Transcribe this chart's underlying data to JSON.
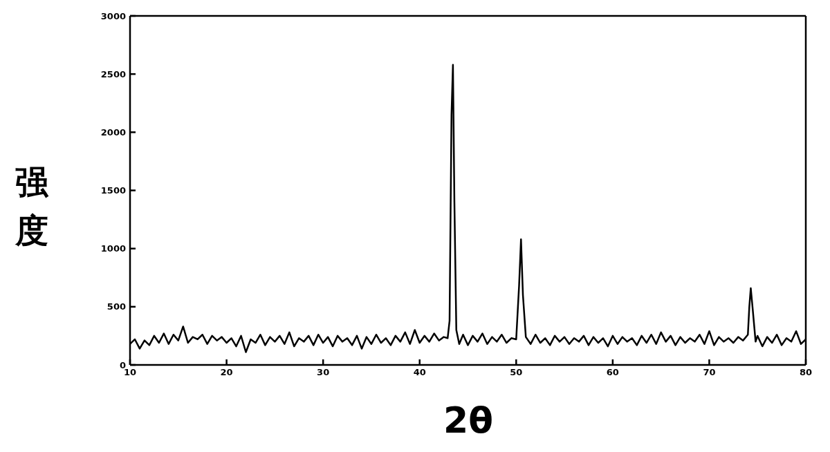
{
  "chart_data": {
    "type": "line",
    "xlabel": "2θ",
    "ylabel": "强度",
    "x": [
      10,
      10.5,
      11,
      11.5,
      12,
      12.5,
      13,
      13.5,
      14,
      14.5,
      15,
      15.5,
      16,
      16.5,
      17,
      17.5,
      18,
      18.5,
      19,
      19.5,
      20,
      20.5,
      21,
      21.5,
      22,
      22.5,
      23,
      23.5,
      24,
      24.5,
      25,
      25.5,
      26,
      26.5,
      27,
      27.5,
      28,
      28.5,
      29,
      29.5,
      30,
      30.5,
      31,
      31.5,
      32,
      32.5,
      33,
      33.5,
      34,
      34.5,
      35,
      35.5,
      36,
      36.5,
      37,
      37.5,
      38,
      38.5,
      39,
      39.5,
      40,
      40.5,
      41,
      41.5,
      42,
      42.5,
      42.9,
      43.1,
      43.3,
      43.45,
      43.6,
      43.8,
      44.1,
      44.5,
      45,
      45.5,
      46,
      46.5,
      47,
      47.5,
      48,
      48.5,
      49,
      49.5,
      50,
      50.3,
      50.5,
      50.7,
      51,
      51.5,
      52,
      52.5,
      53,
      53.5,
      54,
      54.5,
      55,
      55.5,
      56,
      56.5,
      57,
      57.5,
      58,
      58.5,
      59,
      59.5,
      60,
      60.5,
      61,
      61.5,
      62,
      62.5,
      63,
      63.5,
      64,
      64.5,
      65,
      65.5,
      66,
      66.5,
      67,
      67.5,
      68,
      68.5,
      69,
      69.5,
      70,
      70.5,
      71,
      71.5,
      72,
      72.5,
      73,
      73.5,
      74,
      74.15,
      74.3,
      74.5,
      74.8,
      75,
      75.5,
      76,
      76.5,
      77,
      77.5,
      78,
      78.5,
      79,
      79.5,
      80
    ],
    "series": [
      {
        "color": "#000000",
        "values": [
          180,
          220,
          140,
          210,
          170,
          250,
          190,
          270,
          180,
          260,
          210,
          330,
          190,
          240,
          220,
          260,
          180,
          250,
          210,
          240,
          190,
          230,
          160,
          250,
          110,
          220,
          190,
          260,
          170,
          240,
          200,
          250,
          180,
          280,
          160,
          230,
          200,
          250,
          170,
          260,
          190,
          240,
          160,
          250,
          200,
          230,
          170,
          250,
          140,
          240,
          180,
          260,
          190,
          230,
          170,
          250,
          200,
          280,
          180,
          300,
          190,
          250,
          200,
          270,
          210,
          240,
          230,
          380,
          2150,
          2580,
          1400,
          300,
          180,
          260,
          170,
          250,
          200,
          270,
          180,
          240,
          200,
          260,
          190,
          230,
          220,
          680,
          1080,
          600,
          240,
          180,
          260,
          190,
          230,
          170,
          250,
          200,
          240,
          180,
          230,
          200,
          250,
          170,
          240,
          190,
          230,
          160,
          250,
          180,
          240,
          200,
          230,
          170,
          250,
          190,
          260,
          180,
          280,
          200,
          250,
          170,
          240,
          190,
          230,
          200,
          260,
          180,
          290,
          170,
          240,
          200,
          230,
          190,
          240,
          210,
          260,
          500,
          660,
          480,
          200,
          250,
          160,
          240,
          190,
          260,
          170,
          230,
          200,
          290,
          180,
          220
        ]
      }
    ],
    "xlim": [
      10,
      80
    ],
    "xticks": [
      10,
      20,
      30,
      40,
      50,
      60,
      70,
      80
    ],
    "ylim": [
      0,
      3000
    ],
    "yticks": [
      0,
      500,
      1000,
      1500,
      2000,
      2500,
      3000
    ],
    "grid": false,
    "legend": false,
    "marker": "none",
    "line_style": "solid"
  }
}
